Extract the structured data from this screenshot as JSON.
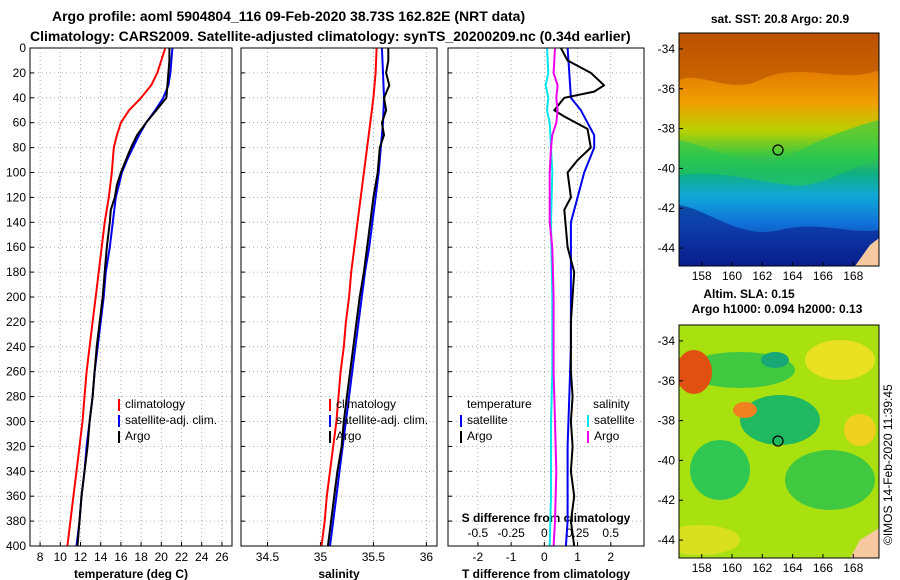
{
  "header": {
    "line1": "Argo profile: aoml 5904804_116 09-Feb-2020 38.73S 162.82E (NRT data)",
    "line2": "Climatology: CARS2009. Satellite-adjusted climatology: synTS_20200209.nc (0.34d earlier)"
  },
  "credit": "©IMOS 14-Feb-2020 11:39:45",
  "colors": {
    "clim": "#ff0000",
    "sat": "#0000ee",
    "argo": "#000000",
    "sal_sat": "#00e5ee",
    "sal_argo": "#ee00ee"
  },
  "chart_data": [
    {
      "type": "line",
      "id": "temperature",
      "xlabel": "temperature (deg C)",
      "ylabel": "depth",
      "xlim": [
        7,
        27
      ],
      "ylim": [
        400,
        0
      ],
      "grid": true,
      "xticks": [
        "8",
        "10",
        "12",
        "14",
        "16",
        "18",
        "20",
        "22",
        "24",
        "26"
      ],
      "yticks": [
        "0",
        "20",
        "40",
        "60",
        "80",
        "100",
        "120",
        "140",
        "160",
        "180",
        "200",
        "220",
        "240",
        "260",
        "280",
        "300",
        "320",
        "340",
        "360",
        "380",
        "400"
      ],
      "legend": {
        "placement": "lower-right",
        "entries": [
          "climatology",
          "satellite-adj. clim.",
          "Argo"
        ]
      },
      "series": [
        {
          "name": "climatology",
          "color": "#ff0000",
          "points": [
            [
              20.4,
              0
            ],
            [
              20.2,
              5
            ],
            [
              20.0,
              10
            ],
            [
              19.6,
              20
            ],
            [
              19.0,
              30
            ],
            [
              18.0,
              40
            ],
            [
              16.8,
              50
            ],
            [
              16.0,
              60
            ],
            [
              15.6,
              70
            ],
            [
              15.3,
              80
            ],
            [
              15.1,
              100
            ],
            [
              14.8,
              120
            ],
            [
              14.4,
              140
            ],
            [
              14.1,
              160
            ],
            [
              13.8,
              180
            ],
            [
              13.5,
              200
            ],
            [
              13.2,
              220
            ],
            [
              12.9,
              240
            ],
            [
              12.6,
              260
            ],
            [
              12.4,
              280
            ],
            [
              12.2,
              300
            ],
            [
              11.9,
              320
            ],
            [
              11.6,
              340
            ],
            [
              11.3,
              360
            ],
            [
              11.0,
              380
            ],
            [
              10.7,
              400
            ]
          ]
        },
        {
          "name": "satellite-adj. clim.",
          "color": "#0000ee",
          "points": [
            [
              21.1,
              0
            ],
            [
              21.0,
              10
            ],
            [
              20.9,
              20
            ],
            [
              20.7,
              30
            ],
            [
              20.2,
              40
            ],
            [
              19.4,
              50
            ],
            [
              18.5,
              60
            ],
            [
              17.8,
              70
            ],
            [
              17.2,
              80
            ],
            [
              16.6,
              90
            ],
            [
              16.1,
              100
            ],
            [
              15.8,
              110
            ],
            [
              15.5,
              120
            ],
            [
              15.2,
              140
            ],
            [
              14.9,
              160
            ],
            [
              14.5,
              180
            ],
            [
              14.3,
              200
            ],
            [
              14.0,
              220
            ],
            [
              13.7,
              240
            ],
            [
              13.4,
              260
            ],
            [
              13.2,
              280
            ],
            [
              12.9,
              300
            ],
            [
              12.6,
              320
            ],
            [
              12.4,
              340
            ],
            [
              12.1,
              360
            ],
            [
              11.9,
              380
            ],
            [
              11.6,
              400
            ]
          ]
        },
        {
          "name": "Argo",
          "color": "#000000",
          "points": [
            [
              20.8,
              0
            ],
            [
              20.8,
              10
            ],
            [
              20.7,
              20
            ],
            [
              20.6,
              30
            ],
            [
              20.5,
              40
            ],
            [
              19.5,
              50
            ],
            [
              18.5,
              60
            ],
            [
              17.6,
              70
            ],
            [
              17.0,
              80
            ],
            [
              16.5,
              90
            ],
            [
              16.0,
              100
            ],
            [
              15.6,
              110
            ],
            [
              15.4,
              120
            ],
            [
              15.0,
              130
            ],
            [
              14.9,
              140
            ],
            [
              14.6,
              160
            ],
            [
              14.4,
              180
            ],
            [
              14.2,
              200
            ],
            [
              13.9,
              220
            ],
            [
              13.6,
              240
            ],
            [
              13.4,
              260
            ],
            [
              13.2,
              280
            ],
            [
              12.9,
              300
            ],
            [
              12.7,
              320
            ],
            [
              12.4,
              340
            ],
            [
              12.1,
              360
            ],
            [
              11.9,
              380
            ],
            [
              11.7,
              400
            ]
          ]
        }
      ]
    },
    {
      "type": "line",
      "id": "salinity",
      "xlabel": "salinity",
      "ylabel": "depth",
      "xlim": [
        34.25,
        36.1
      ],
      "ylim": [
        400,
        0
      ],
      "grid": true,
      "xticks": [
        "34.5",
        "35",
        "35.5",
        "36"
      ],
      "legend": {
        "placement": "lower-right",
        "entries": [
          "climatology",
          "satellite-adj. clim.",
          "Argo"
        ]
      },
      "series": [
        {
          "name": "climatology",
          "color": "#ff0000",
          "points": [
            [
              35.53,
              0
            ],
            [
              35.52,
              20
            ],
            [
              35.5,
              40
            ],
            [
              35.47,
              60
            ],
            [
              35.44,
              80
            ],
            [
              35.41,
              100
            ],
            [
              35.38,
              120
            ],
            [
              35.35,
              140
            ],
            [
              35.32,
              160
            ],
            [
              35.29,
              180
            ],
            [
              35.27,
              200
            ],
            [
              35.24,
              220
            ],
            [
              35.22,
              240
            ],
            [
              35.19,
              260
            ],
            [
              35.17,
              280
            ],
            [
              35.15,
              300
            ],
            [
              35.12,
              320
            ],
            [
              35.09,
              340
            ],
            [
              35.06,
              360
            ],
            [
              35.04,
              380
            ],
            [
              35.01,
              400
            ]
          ]
        },
        {
          "name": "satellite-adj. clim.",
          "color": "#0000ee",
          "points": [
            [
              35.58,
              0
            ],
            [
              35.59,
              20
            ],
            [
              35.6,
              40
            ],
            [
              35.59,
              60
            ],
            [
              35.57,
              80
            ],
            [
              35.55,
              100
            ],
            [
              35.52,
              120
            ],
            [
              35.49,
              140
            ],
            [
              35.46,
              160
            ],
            [
              35.42,
              180
            ],
            [
              35.39,
              200
            ],
            [
              35.36,
              220
            ],
            [
              35.33,
              240
            ],
            [
              35.3,
              260
            ],
            [
              35.27,
              280
            ],
            [
              35.24,
              300
            ],
            [
              35.21,
              320
            ],
            [
              35.18,
              340
            ],
            [
              35.15,
              360
            ],
            [
              35.12,
              380
            ],
            [
              35.09,
              400
            ]
          ]
        },
        {
          "name": "Argo",
          "color": "#000000",
          "points": [
            [
              35.64,
              0
            ],
            [
              35.64,
              10
            ],
            [
              35.62,
              20
            ],
            [
              35.65,
              30
            ],
            [
              35.6,
              40
            ],
            [
              35.62,
              50
            ],
            [
              35.58,
              60
            ],
            [
              35.6,
              70
            ],
            [
              35.56,
              80
            ],
            [
              35.54,
              100
            ],
            [
              35.5,
              120
            ],
            [
              35.47,
              140
            ],
            [
              35.44,
              160
            ],
            [
              35.41,
              180
            ],
            [
              35.37,
              200
            ],
            [
              35.34,
              220
            ],
            [
              35.31,
              240
            ],
            [
              35.28,
              260
            ],
            [
              35.25,
              280
            ],
            [
              35.22,
              300
            ],
            [
              35.2,
              320
            ],
            [
              35.16,
              340
            ],
            [
              35.13,
              360
            ],
            [
              35.1,
              380
            ],
            [
              35.07,
              400
            ]
          ]
        }
      ]
    },
    {
      "type": "line",
      "id": "difference",
      "xlabel": "T difference from climatology",
      "x2label": "S difference from climatology",
      "ylabel": "depth",
      "xlim": [
        -2.9,
        3.0
      ],
      "ylim": [
        400,
        0
      ],
      "grid": true,
      "xticks": [
        "-2",
        "-1",
        "0",
        "1",
        "2"
      ],
      "x2ticks": [
        "-0.5",
        "-0.25",
        "0",
        "0.25",
        "0.5"
      ],
      "legend": {
        "placement": "lower",
        "groups": [
          {
            "title": "temperature",
            "entries": [
              "satellite",
              "Argo"
            ]
          },
          {
            "title": "salinity",
            "entries": [
              "satellite",
              "Argo"
            ]
          }
        ]
      },
      "series": [
        {
          "name": "temperature satellite",
          "color": "#0000ee",
          "points": [
            [
              0.7,
              0
            ],
            [
              0.75,
              20
            ],
            [
              0.8,
              40
            ],
            [
              1.1,
              50
            ],
            [
              1.3,
              60
            ],
            [
              1.5,
              70
            ],
            [
              1.5,
              80
            ],
            [
              1.2,
              100
            ],
            [
              1.0,
              120
            ],
            [
              0.8,
              140
            ],
            [
              0.8,
              160
            ],
            [
              0.8,
              200
            ],
            [
              0.8,
              240
            ],
            [
              0.75,
              280
            ],
            [
              0.7,
              320
            ],
            [
              0.7,
              360
            ],
            [
              0.7,
              380
            ],
            [
              0.65,
              400
            ]
          ]
        },
        {
          "name": "temperature Argo",
          "color": "#000000",
          "points": [
            [
              0.5,
              0
            ],
            [
              0.7,
              10
            ],
            [
              1.4,
              20
            ],
            [
              1.8,
              30
            ],
            [
              1.5,
              35
            ],
            [
              0.6,
              40
            ],
            [
              0.3,
              50
            ],
            [
              0.6,
              55
            ],
            [
              1.3,
              65
            ],
            [
              1.4,
              80
            ],
            [
              1.0,
              90
            ],
            [
              0.7,
              100
            ],
            [
              0.8,
              120
            ],
            [
              0.6,
              130
            ],
            [
              0.7,
              160
            ],
            [
              0.9,
              180
            ],
            [
              0.8,
              220
            ],
            [
              0.8,
              260
            ],
            [
              0.85,
              280
            ],
            [
              0.8,
              300
            ],
            [
              0.85,
              320
            ],
            [
              0.8,
              340
            ],
            [
              0.9,
              360
            ],
            [
              0.8,
              380
            ],
            [
              0.9,
              400
            ]
          ]
        },
        {
          "name": "salinity satellite",
          "color": "#00e5ee",
          "axis": "S",
          "points": [
            [
              0.02,
              0
            ],
            [
              0.03,
              20
            ],
            [
              0.01,
              30
            ],
            [
              0.03,
              40
            ],
            [
              0.02,
              50
            ],
            [
              0.04,
              60
            ],
            [
              0.05,
              80
            ],
            [
              0.06,
              100
            ],
            [
              0.05,
              140
            ],
            [
              0.06,
              200
            ],
            [
              0.06,
              260
            ],
            [
              0.05,
              300
            ],
            [
              0.05,
              360
            ],
            [
              0.04,
              400
            ]
          ]
        },
        {
          "name": "salinity Argo",
          "color": "#ee00ee",
          "axis": "S",
          "points": [
            [
              0.08,
              0
            ],
            [
              0.07,
              20
            ],
            [
              0.1,
              30
            ],
            [
              0.09,
              40
            ],
            [
              0.1,
              50
            ],
            [
              0.09,
              60
            ],
            [
              0.06,
              70
            ],
            [
              0.05,
              80
            ],
            [
              0.04,
              100
            ],
            [
              0.04,
              140
            ],
            [
              0.06,
              160
            ],
            [
              0.07,
              200
            ],
            [
              0.07,
              260
            ],
            [
              0.08,
              300
            ],
            [
              0.09,
              340
            ],
            [
              0.08,
              380
            ],
            [
              0.07,
              400
            ]
          ]
        }
      ]
    },
    {
      "type": "heatmap",
      "id": "sst-map",
      "title": "sat. SST: 20.8  Argo: 20.9",
      "xticks": [
        "158",
        "160",
        "162",
        "164",
        "166",
        "168"
      ],
      "yticks": [
        "-34",
        "-36",
        "-38",
        "-40",
        "-42",
        "-44"
      ],
      "xlim": [
        156.5,
        169.7
      ],
      "ylim": [
        -44.9,
        -33.2
      ],
      "marker": [
        162.82,
        -38.73
      ]
    },
    {
      "type": "heatmap",
      "id": "sla-map",
      "title": "Altim. SLA: 0.15",
      "subtitle": "Argo h1000: 0.094 h2000: 0.13",
      "xticks": [
        "158",
        "160",
        "162",
        "164",
        "166",
        "168"
      ],
      "yticks": [
        "-34",
        "-36",
        "-38",
        "-40",
        "-42",
        "-44"
      ],
      "xlim": [
        156.5,
        169.7
      ],
      "ylim": [
        -44.9,
        -33.2
      ],
      "marker": [
        162.82,
        -38.73
      ]
    }
  ]
}
